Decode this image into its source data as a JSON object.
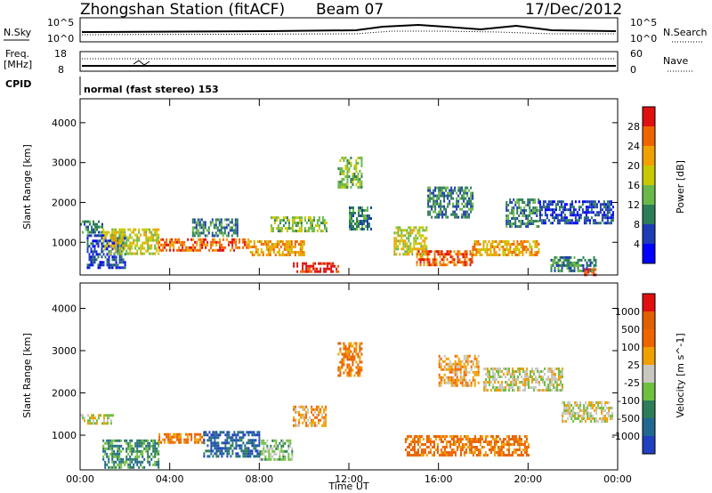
{
  "header": {
    "station": "Zhongshan Station (fitACF)",
    "beam": "Beam 07",
    "date": "17/Dec/2012"
  },
  "aux_panels": {
    "nsky_label": "N.Sky",
    "nsky_ticks": [
      "10^5",
      "10^0"
    ],
    "nsearch_label": "N.Search",
    "nsearch_ticks": [
      "10^5",
      "10^0"
    ],
    "freq_label_top": "Freq.",
    "freq_label_bottom": "[MHz]",
    "freq_ticks": [
      "18",
      "8"
    ],
    "nave_label": "Nave",
    "nave_ticks": [
      "60",
      "0"
    ],
    "cpid_label": "CPID",
    "mode_text": "normal (fast stereo) 153"
  },
  "chart_data": [
    {
      "type": "heatmap",
      "name": "power",
      "ylabel": "Slant Range [km]",
      "xlabel": "",
      "ylim": [
        180,
        4600
      ],
      "xlim": [
        0,
        24
      ],
      "yticks": [
        1000,
        2000,
        3000,
        4000
      ],
      "xticks": [
        "00:00",
        "04:00",
        "08:00",
        "12:00",
        "16:00",
        "20:00",
        "00:00"
      ],
      "colorbar": {
        "label": "Power [dB]",
        "ticks": [
          "4",
          "8",
          "12",
          "16",
          "20",
          "24",
          "28"
        ],
        "colors": [
          "#0000ff",
          "#1e3cb4",
          "#2e7d5a",
          "#6bb84a",
          "#c8c800",
          "#f0a000",
          "#f06400",
          "#e01010"
        ]
      },
      "regions": [
        {
          "t": [
            0.0,
            1.0
          ],
          "r": [
            1250,
            1550
          ],
          "v": 2
        },
        {
          "t": [
            0.3,
            2.0
          ],
          "r": [
            350,
            1200
          ],
          "v": 1
        },
        {
          "t": [
            1.0,
            3.5
          ],
          "r": [
            700,
            1350
          ],
          "v": 4
        },
        {
          "t": [
            3.5,
            7.5
          ],
          "r": [
            800,
            1100
          ],
          "v": 6
        },
        {
          "t": [
            5.0,
            7.0
          ],
          "r": [
            1150,
            1600
          ],
          "v": 2
        },
        {
          "t": [
            7.5,
            10.0
          ],
          "r": [
            700,
            1050
          ],
          "v": 5
        },
        {
          "t": [
            9.5,
            11.5
          ],
          "r": [
            250,
            500
          ],
          "v": 7
        },
        {
          "t": [
            8.5,
            11.0
          ],
          "r": [
            1250,
            1650
          ],
          "v": 3
        },
        {
          "t": [
            11.5,
            12.6
          ],
          "r": [
            2400,
            3150
          ],
          "v": 3
        },
        {
          "t": [
            12.0,
            13.0
          ],
          "r": [
            1300,
            1900
          ],
          "v": 2
        },
        {
          "t": [
            14.0,
            15.5
          ],
          "r": [
            700,
            1400
          ],
          "v": 4
        },
        {
          "t": [
            15.0,
            17.5
          ],
          "r": [
            450,
            800
          ],
          "v": 6
        },
        {
          "t": [
            15.5,
            17.5
          ],
          "r": [
            1600,
            2400
          ],
          "v": 2
        },
        {
          "t": [
            17.5,
            20.5
          ],
          "r": [
            700,
            1050
          ],
          "v": 5
        },
        {
          "t": [
            19.0,
            20.5
          ],
          "r": [
            1400,
            2100
          ],
          "v": 2
        },
        {
          "t": [
            20.5,
            23.8
          ],
          "r": [
            1500,
            2050
          ],
          "v": 1
        },
        {
          "t": [
            22.5,
            23.0
          ],
          "r": [
            180,
            350
          ],
          "v": 7
        },
        {
          "t": [
            21.0,
            23.0
          ],
          "r": [
            300,
            650
          ],
          "v": 2
        }
      ]
    },
    {
      "type": "heatmap",
      "name": "velocity",
      "ylabel": "Slant Range [km]",
      "xlabel": "Time UT",
      "ylim": [
        180,
        4600
      ],
      "xlim": [
        0,
        24
      ],
      "yticks": [
        1000,
        2000,
        3000,
        4000
      ],
      "xticks": [
        "00:00",
        "04:00",
        "08:00",
        "12:00",
        "16:00",
        "20:00",
        "00:00"
      ],
      "colorbar": {
        "label": "Velocity [m s^-1]",
        "ticks": [
          "1000",
          "500",
          "100",
          "25",
          "-25",
          "-100",
          "-500",
          "-1000"
        ],
        "colors": [
          "#2040c0",
          "#206890",
          "#2e7d5a",
          "#70c040",
          "#c8c8c0",
          "#f0a000",
          "#f06400",
          "#e06000",
          "#e01010"
        ]
      },
      "regions": [
        {
          "t": [
            0.0,
            1.5
          ],
          "r": [
            1250,
            1500
          ],
          "v": 4
        },
        {
          "t": [
            1.0,
            3.5
          ],
          "r": [
            250,
            900
          ],
          "v": 2
        },
        {
          "t": [
            3.5,
            5.5
          ],
          "r": [
            800,
            1050
          ],
          "v": 6
        },
        {
          "t": [
            5.5,
            8.0
          ],
          "r": [
            500,
            1100
          ],
          "v": 1
        },
        {
          "t": [
            8.0,
            9.5
          ],
          "r": [
            450,
            900
          ],
          "v": 3
        },
        {
          "t": [
            9.5,
            11.0
          ],
          "r": [
            1200,
            1700
          ],
          "v": 5
        },
        {
          "t": [
            11.5,
            12.6
          ],
          "r": [
            2400,
            3200
          ],
          "v": 6
        },
        {
          "t": [
            14.5,
            20.0
          ],
          "r": [
            500,
            1000
          ],
          "v": 6
        },
        {
          "t": [
            16.0,
            17.8
          ],
          "r": [
            2200,
            2900
          ],
          "v": 5
        },
        {
          "t": [
            18.0,
            21.5
          ],
          "r": [
            2050,
            2600
          ],
          "v": 4
        },
        {
          "t": [
            21.5,
            23.8
          ],
          "r": [
            1350,
            1800
          ],
          "v": 4
        }
      ]
    }
  ]
}
